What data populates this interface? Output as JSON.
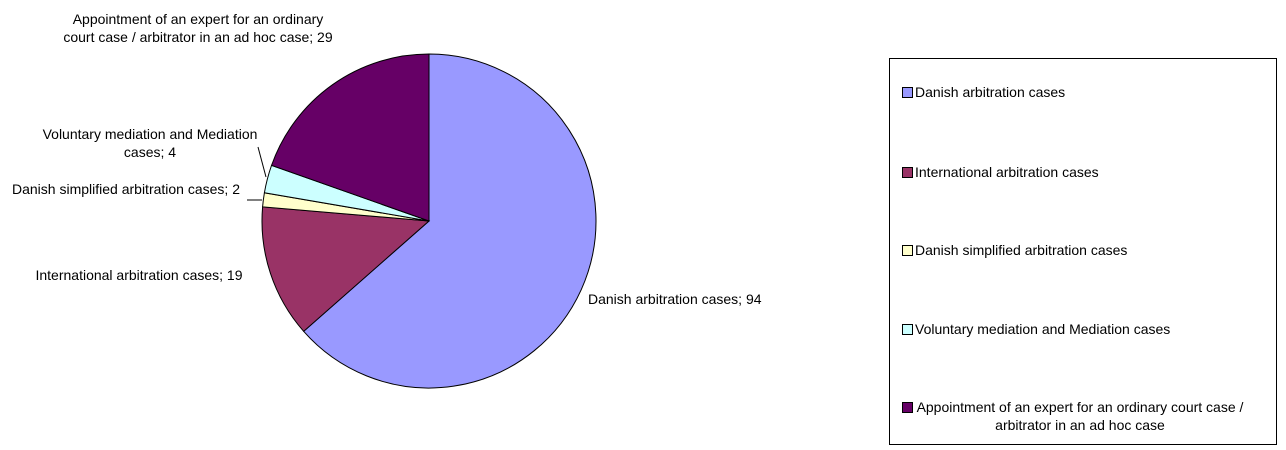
{
  "chart_data": {
    "type": "pie",
    "categories": [
      "Danish arbitration cases",
      "International arbitration cases",
      "Danish simplified arbitration cases",
      "Voluntary mediation and Mediation cases",
      "Appointment of an expert for an ordinary court case / arbitrator in an ad hoc case"
    ],
    "values": [
      94,
      19,
      2,
      4,
      29
    ],
    "colors": [
      "#9999FF",
      "#993366",
      "#FFFFCC",
      "#CCFFFF",
      "#660066"
    ],
    "data_labels": [
      "Danish arbitration cases; 94",
      "International arbitration cases; 19",
      "Danish simplified arbitration cases; 2",
      "Voluntary mediation and Mediation cases; 4",
      "Appointment of an expert for an ordinary court case / arbitrator in an ad hoc case; 29"
    ],
    "legend": {
      "placement": "right",
      "entries": [
        "Danish arbitration cases",
        "International arbitration cases",
        "Danish simplified arbitration cases",
        "Voluntary mediation and Mediation cases",
        "Appointment of an expert for an ordinary court case / arbitrator in an ad hoc case"
      ]
    },
    "start_angle": "12 o'clock",
    "direction": "clockwise"
  }
}
